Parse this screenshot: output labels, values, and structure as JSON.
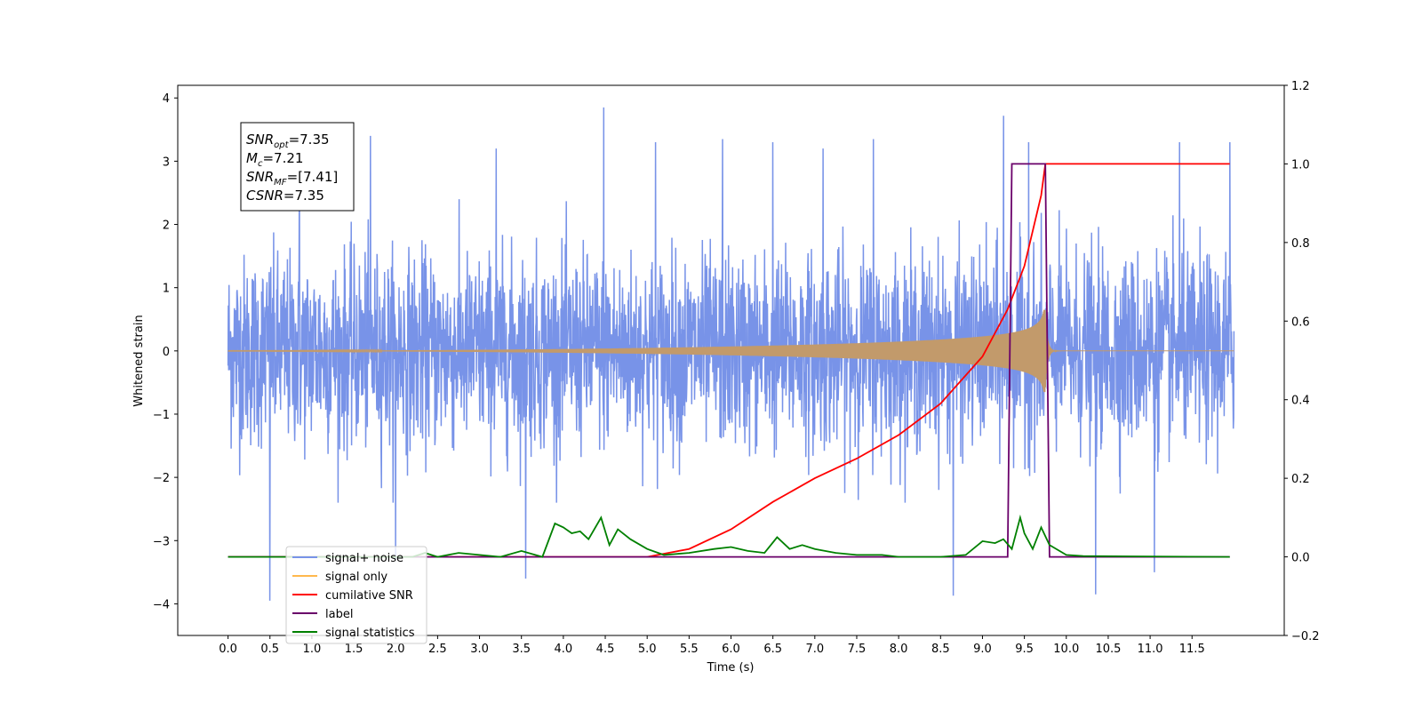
{
  "chart_data": {
    "type": "line",
    "xlabel": "Time (s)",
    "ylabel": "Whitened strain",
    "xlim": [
      -0.6,
      12.6
    ],
    "ylim": [
      -4.5,
      4.2
    ],
    "y2lim": [
      -0.2,
      1.2
    ],
    "x_ticks": [
      "0.0",
      "0.5",
      "1.0",
      "1.5",
      "2.0",
      "2.5",
      "3.0",
      "3.5",
      "4.0",
      "4.5",
      "5.0",
      "5.5",
      "6.0",
      "6.5",
      "7.0",
      "7.5",
      "8.0",
      "8.5",
      "9.0",
      "9.5",
      "10.0",
      "10.5",
      "11.0",
      "11.5"
    ],
    "y_ticks": [
      "4",
      "3",
      "2",
      "1",
      "0",
      "−1",
      "−2",
      "−3",
      "−4"
    ],
    "y2_ticks": [
      "1.2",
      "1.0",
      "0.8",
      "0.6",
      "0.4",
      "0.2",
      "0.0",
      "−0.2"
    ],
    "annotation": [
      {
        "base": "SNR",
        "sub": "opt",
        "rest": "=7.35"
      },
      {
        "base": "M",
        "sub": "c",
        "rest": "=7.21"
      },
      {
        "base": "SNR",
        "sub": "MF",
        "rest": "=[7.41]"
      },
      {
        "base": "CSNR",
        "sub": "",
        "rest": "=7.35"
      }
    ],
    "legend": {
      "placement": "lower-left",
      "entries": [
        {
          "label": "signal+ noise",
          "color": "#7893e8"
        },
        {
          "label": "signal only",
          "color": "#ffb84d"
        },
        {
          "label": "cumilative SNR",
          "color": "#ff0000"
        },
        {
          "label": "label",
          "color": "#6a006a"
        },
        {
          "label": "signal statistics",
          "color": "#008000"
        }
      ]
    },
    "series": [
      {
        "name": "signal+ noise",
        "axis": "left",
        "color": "#7893e8",
        "kind": "noise",
        "x_range": [
          0.0,
          12.0
        ],
        "envelope": [
          -2.0,
          2.0
        ],
        "spikes": [
          [
            0.5,
            -3.95
          ],
          [
            0.85,
            3.1
          ],
          [
            1.7,
            3.4
          ],
          [
            2.0,
            -3.3
          ],
          [
            3.2,
            3.2
          ],
          [
            3.55,
            -3.6
          ],
          [
            4.48,
            3.85
          ],
          [
            5.1,
            3.3
          ],
          [
            5.9,
            3.35
          ],
          [
            6.5,
            3.3
          ],
          [
            7.1,
            3.2
          ],
          [
            7.7,
            3.35
          ],
          [
            8.65,
            -3.87
          ],
          [
            9.25,
            3.72
          ],
          [
            9.55,
            -4.1
          ],
          [
            9.55,
            3.3
          ],
          [
            10.35,
            -3.85
          ],
          [
            11.05,
            -3.5
          ],
          [
            11.35,
            3.3
          ],
          [
            11.95,
            3.3
          ]
        ]
      },
      {
        "name": "signal only",
        "axis": "left",
        "color": "#c29a6b",
        "kind": "chirp",
        "x_range": [
          0.0,
          12.0
        ],
        "merger_time": 9.75,
        "peak_amplitude": 0.65
      },
      {
        "name": "cumilative SNR",
        "axis": "right",
        "color": "#ff0000",
        "x": [
          0.0,
          5.0,
          5.5,
          6.0,
          6.5,
          7.0,
          7.5,
          8.0,
          8.5,
          9.0,
          9.3,
          9.5,
          9.7,
          9.75,
          9.8,
          10.5,
          11.0,
          11.5,
          11.95
        ],
        "values": [
          0.0,
          0.0,
          0.02,
          0.07,
          0.14,
          0.2,
          0.25,
          0.31,
          0.39,
          0.51,
          0.63,
          0.74,
          0.92,
          1.0,
          1.0,
          1.0,
          1.0,
          1.0,
          1.0
        ]
      },
      {
        "name": "label",
        "axis": "right",
        "color": "#6a006a",
        "x": [
          0.0,
          9.3,
          9.35,
          9.75,
          9.8,
          11.95
        ],
        "values": [
          0.0,
          0.0,
          1.0,
          1.0,
          0.0,
          0.0
        ]
      },
      {
        "name": "signal statistics",
        "axis": "right",
        "color": "#008000",
        "x": [
          0.0,
          2.2,
          2.35,
          2.5,
          2.75,
          3.0,
          3.25,
          3.5,
          3.75,
          3.9,
          4.0,
          4.1,
          4.2,
          4.3,
          4.45,
          4.55,
          4.65,
          4.8,
          5.0,
          5.2,
          5.5,
          5.8,
          6.0,
          6.2,
          6.4,
          6.55,
          6.7,
          6.85,
          7.0,
          7.25,
          7.5,
          7.8,
          8.0,
          8.5,
          8.8,
          9.0,
          9.15,
          9.25,
          9.35,
          9.45,
          9.5,
          9.6,
          9.7,
          9.8,
          10.0,
          10.2,
          11.95
        ],
        "values": [
          0.0,
          0.0,
          0.01,
          0.0,
          0.01,
          0.005,
          0.0,
          0.015,
          0.0,
          0.085,
          0.075,
          0.06,
          0.065,
          0.045,
          0.1,
          0.03,
          0.07,
          0.045,
          0.02,
          0.005,
          0.01,
          0.02,
          0.025,
          0.015,
          0.01,
          0.05,
          0.02,
          0.03,
          0.02,
          0.01,
          0.005,
          0.005,
          0.0,
          0.0,
          0.005,
          0.04,
          0.035,
          0.045,
          0.02,
          0.1,
          0.06,
          0.02,
          0.075,
          0.03,
          0.005,
          0.002,
          0.0
        ]
      }
    ]
  }
}
